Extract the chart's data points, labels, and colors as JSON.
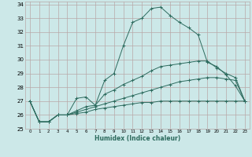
{
  "title": "",
  "xlabel": "Humidex (Indice chaleur)",
  "ylabel": "",
  "xlim": [
    -0.5,
    23.5
  ],
  "ylim": [
    25,
    34.2
  ],
  "xticks": [
    0,
    1,
    2,
    3,
    4,
    5,
    6,
    7,
    8,
    9,
    10,
    11,
    12,
    13,
    14,
    15,
    16,
    17,
    18,
    19,
    20,
    21,
    22,
    23
  ],
  "yticks": [
    25,
    26,
    27,
    28,
    29,
    30,
    31,
    32,
    33,
    34
  ],
  "bg_color": "#cce8e8",
  "grid_color": "#b8a8a8",
  "line_color": "#2d6b5e",
  "series": [
    [
      27.0,
      25.5,
      25.5,
      26.0,
      26.0,
      27.2,
      27.3,
      26.7,
      28.5,
      29.0,
      31.0,
      32.7,
      33.0,
      33.7,
      33.8,
      33.2,
      32.7,
      32.3,
      31.8,
      29.8,
      29.5,
      28.9,
      28.1,
      27.0
    ],
    [
      27.0,
      25.5,
      25.5,
      26.0,
      26.0,
      26.3,
      26.6,
      26.7,
      27.5,
      27.8,
      28.2,
      28.5,
      28.8,
      29.2,
      29.5,
      29.6,
      29.7,
      29.8,
      29.9,
      29.9,
      29.4,
      29.0,
      28.7,
      27.0
    ],
    [
      27.0,
      25.5,
      25.5,
      26.0,
      26.0,
      26.2,
      26.4,
      26.6,
      26.8,
      27.0,
      27.2,
      27.4,
      27.6,
      27.8,
      28.0,
      28.2,
      28.4,
      28.5,
      28.6,
      28.7,
      28.7,
      28.6,
      28.5,
      27.0
    ],
    [
      27.0,
      25.5,
      25.5,
      26.0,
      26.0,
      26.1,
      26.2,
      26.4,
      26.5,
      26.6,
      26.7,
      26.8,
      26.9,
      26.9,
      27.0,
      27.0,
      27.0,
      27.0,
      27.0,
      27.0,
      27.0,
      27.0,
      27.0,
      27.0
    ]
  ]
}
